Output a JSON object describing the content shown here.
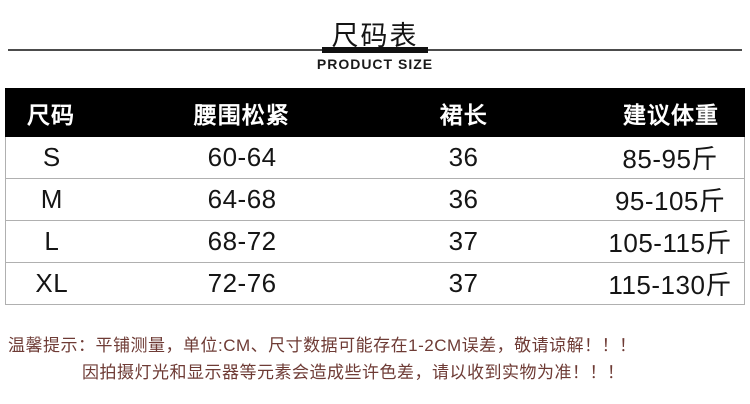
{
  "page": {
    "title_zh": "尺码表",
    "title_en": "PRODUCT SIZE"
  },
  "size_table": {
    "columns": [
      "尺码",
      "腰围松紧",
      "裙长",
      "建议体重"
    ],
    "rows": [
      [
        "S",
        "60-64",
        "36",
        "85-95斤"
      ],
      [
        "M",
        "64-68",
        "36",
        "95-105斤"
      ],
      [
        "L",
        "68-72",
        "37",
        "105-115斤"
      ],
      [
        "XL",
        "72-76",
        "37",
        "115-130斤"
      ]
    ]
  },
  "notes": {
    "line1": "温馨提示：平铺测量，单位:CM、尺寸数据可能存在1-2CM误差，敬请谅解！！！",
    "line2": "因拍摄灯光和显示器等元素会造成些许色差，请以收到实物为准！！！"
  },
  "colors": {
    "header_bg": "#000000",
    "header_text": "#ffffff",
    "body_text": "#151515",
    "table_border": "#b0b0b0",
    "note_text": "#6e3b35",
    "divider_thin": "#4c4c4c",
    "divider_thick": "#111111"
  }
}
